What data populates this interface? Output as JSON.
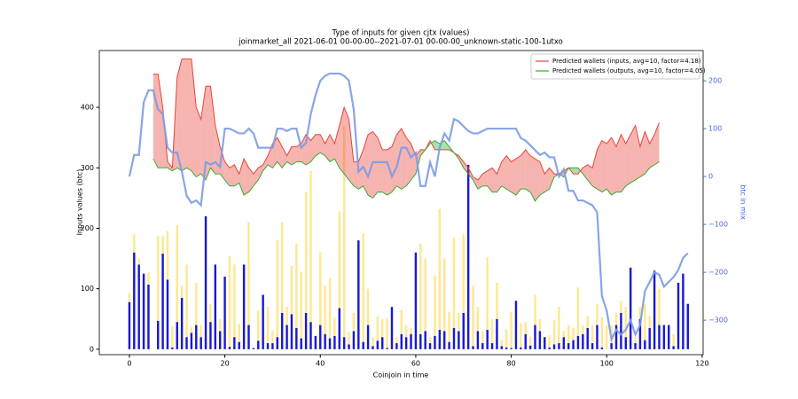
{
  "chart_data": {
    "type": "bar",
    "title": "Type of inputs for given cjtx (values)",
    "subtitle": "joinmarket_all 2021-06-01 00-00-00--2021-07-01 00-00-00_unknown-static-100-1utxo",
    "x_label": "Coinjoin in time",
    "y_label": "Inputs values (btc)",
    "y2_label": "btc in mix",
    "y2_color": "#4169e1",
    "legend_position": "upper right",
    "xlim": [
      -6.3,
      120.2
    ],
    "ylim": [
      -9,
      494
    ],
    "y2lim": [
      -372,
      263
    ],
    "xticks": [
      0,
      20,
      40,
      60,
      80,
      100,
      120
    ],
    "yticks": [
      0,
      100,
      200,
      300,
      400
    ],
    "y2ticks": [
      {
        "value": -300,
        "label": "−300"
      },
      {
        "value": -200,
        "label": "−200"
      },
      {
        "value": -100,
        "label": "−100"
      },
      0,
      100,
      200
    ],
    "x": [
      0,
      1,
      2,
      3,
      4,
      5,
      6,
      7,
      8,
      9,
      10,
      11,
      12,
      13,
      14,
      15,
      16,
      17,
      18,
      19,
      20,
      21,
      22,
      23,
      24,
      25,
      26,
      27,
      28,
      29,
      30,
      31,
      32,
      33,
      34,
      35,
      36,
      37,
      38,
      39,
      40,
      41,
      42,
      43,
      44,
      45,
      46,
      47,
      48,
      49,
      50,
      51,
      52,
      53,
      54,
      55,
      56,
      57,
      58,
      59,
      60,
      61,
      62,
      63,
      64,
      65,
      66,
      67,
      68,
      69,
      70,
      71,
      72,
      73,
      74,
      75,
      76,
      77,
      78,
      79,
      80,
      81,
      82,
      83,
      84,
      85,
      86,
      87,
      88,
      89,
      90,
      91,
      92,
      93,
      94,
      95,
      96,
      97,
      98,
      99,
      100,
      101,
      102,
      103,
      104,
      105,
      106,
      107,
      108,
      109,
      110,
      111,
      112,
      113,
      114,
      115,
      116,
      117
    ],
    "series": [
      {
        "type": "bar",
        "color": "#0000cc",
        "values": [
          78,
          160,
          140,
          125,
          107,
          0,
          47,
          158,
          115,
          3,
          45,
          85,
          20,
          27,
          40,
          20,
          220,
          45,
          140,
          30,
          120,
          4,
          20,
          12,
          140,
          40,
          2,
          14,
          90,
          10,
          10,
          20,
          60,
          40,
          58,
          35,
          18,
          60,
          45,
          22,
          40,
          25,
          18,
          22,
          68,
          20,
          8,
          30,
          180,
          12,
          40,
          5,
          14,
          20,
          2,
          70,
          10,
          25,
          20,
          25,
          160,
          25,
          30,
          10,
          22,
          32,
          30,
          12,
          35,
          30,
          60,
          305,
          5,
          30,
          10,
          32,
          10,
          50,
          5,
          3,
          2,
          80,
          3,
          25,
          6,
          40,
          30,
          20,
          3,
          8,
          10,
          20,
          10,
          15,
          22,
          25,
          35,
          10,
          40,
          3,
          0,
          10,
          40,
          60,
          20,
          135,
          10,
          50,
          15,
          35,
          130,
          40,
          40,
          40,
          5,
          110,
          125,
          75
        ]
      },
      {
        "type": "bar",
        "color": "#ffd54a",
        "values": [
          15,
          30,
          10,
          0,
          20,
          0,
          140,
          30,
          80,
          35,
          160,
          20,
          120,
          10,
          70,
          20,
          0,
          30,
          0,
          20,
          0,
          150,
          120,
          30,
          0,
          170,
          0,
          50,
          0,
          60,
          20,
          160,
          150,
          30,
          80,
          140,
          110,
          200,
          250,
          0,
          120,
          80,
          100,
          30,
          160,
          350,
          20,
          30,
          0,
          180,
          60,
          15,
          40,
          30,
          50,
          0,
          10,
          40,
          20,
          10,
          0,
          150,
          120,
          10,
          100,
          200,
          120,
          50,
          150,
          30,
          130,
          0,
          100,
          40,
          20,
          120,
          40,
          60,
          10,
          30,
          60,
          0,
          40,
          20,
          15,
          50,
          20,
          0,
          20,
          40,
          60,
          10,
          30,
          20,
          80,
          15,
          20,
          30,
          35,
          50,
          40,
          30,
          20,
          20,
          50,
          0,
          10,
          20,
          60,
          20,
          0,
          60,
          0,
          0,
          20,
          0,
          0,
          0
        ]
      },
      {
        "type": "line",
        "name": "Predicted wallets (inputs, avg=10, factor=4.18)",
        "color": "#e8443a",
        "values": [
          null,
          null,
          null,
          null,
          null,
          455,
          455,
          400,
          310,
          300,
          450,
          480,
          480,
          480,
          400,
          380,
          435,
          435,
          370,
          335,
          310,
          300,
          305,
          290,
          315,
          300,
          290,
          300,
          305,
          320,
          340,
          350,
          335,
          320,
          335,
          335,
          340,
          355,
          345,
          355,
          355,
          340,
          355,
          340,
          370,
          400,
          380,
          310,
          310,
          330,
          355,
          360,
          350,
          330,
          330,
          335,
          355,
          365,
          350,
          340,
          320,
          330,
          330,
          345,
          330,
          330,
          330,
          330,
          325,
          320,
          310,
          300,
          285,
          280,
          290,
          295,
          300,
          290,
          310,
          320,
          310,
          315,
          320,
          330,
          320,
          315,
          310,
          290,
          300,
          290,
          290,
          295,
          300,
          290,
          290,
          300,
          305,
          300,
          330,
          345,
          340,
          350,
          335,
          355,
          340,
          355,
          370,
          335,
          360,
          340,
          355,
          375,
          null,
          null,
          null,
          null,
          null,
          null
        ]
      },
      {
        "type": "line",
        "name": "Predicted wallets (outputs, avg=10, factor=4.05)",
        "color": "#3aaa35",
        "values": [
          null,
          null,
          null,
          null,
          null,
          315,
          300,
          300,
          300,
          295,
          300,
          295,
          300,
          295,
          285,
          290,
          280,
          300,
          290,
          290,
          280,
          270,
          270,
          275,
          255,
          260,
          270,
          280,
          295,
          305,
          300,
          310,
          300,
          310,
          305,
          310,
          310,
          305,
          310,
          320,
          325,
          320,
          310,
          315,
          300,
          290,
          280,
          270,
          265,
          270,
          255,
          250,
          260,
          260,
          255,
          260,
          270,
          265,
          270,
          280,
          290,
          320,
          330,
          340,
          345,
          340,
          345,
          335,
          325,
          315,
          300,
          290,
          280,
          265,
          270,
          270,
          260,
          260,
          270,
          265,
          260,
          255,
          265,
          265,
          260,
          245,
          255,
          260,
          265,
          285,
          290,
          285,
          300,
          300,
          300,
          290,
          280,
          270,
          265,
          260,
          265,
          255,
          260,
          260,
          270,
          275,
          280,
          285,
          290,
          300,
          305,
          310,
          null,
          null,
          null,
          null,
          null,
          null
        ]
      },
      {
        "type": "line",
        "axis": "y2",
        "color": "#7b9be6",
        "values": [
          0,
          45,
          45,
          155,
          180,
          180,
          140,
          130,
          60,
          50,
          50,
          10,
          -40,
          -55,
          -50,
          -60,
          30,
          25,
          30,
          20,
          100,
          100,
          95,
          90,
          90,
          100,
          90,
          60,
          60,
          60,
          60,
          100,
          100,
          95,
          100,
          100,
          60,
          70,
          130,
          170,
          200,
          210,
          215,
          215,
          215,
          210,
          200,
          140,
          10,
          20,
          0,
          30,
          30,
          30,
          30,
          0,
          20,
          60,
          60,
          40,
          50,
          -20,
          -20,
          30,
          0,
          60,
          90,
          75,
          120,
          115,
          105,
          95,
          90,
          90,
          95,
          100,
          100,
          100,
          100,
          100,
          100,
          100,
          80,
          75,
          65,
          55,
          45,
          50,
          40,
          40,
          0,
          15,
          -30,
          -30,
          -50,
          -50,
          -55,
          -60,
          -75,
          -250,
          -280,
          -340,
          -320,
          -330,
          -320,
          -300,
          -330,
          -310,
          -240,
          -220,
          -200,
          -205,
          -230,
          -220,
          -210,
          -195,
          -170,
          -160
        ]
      }
    ]
  }
}
